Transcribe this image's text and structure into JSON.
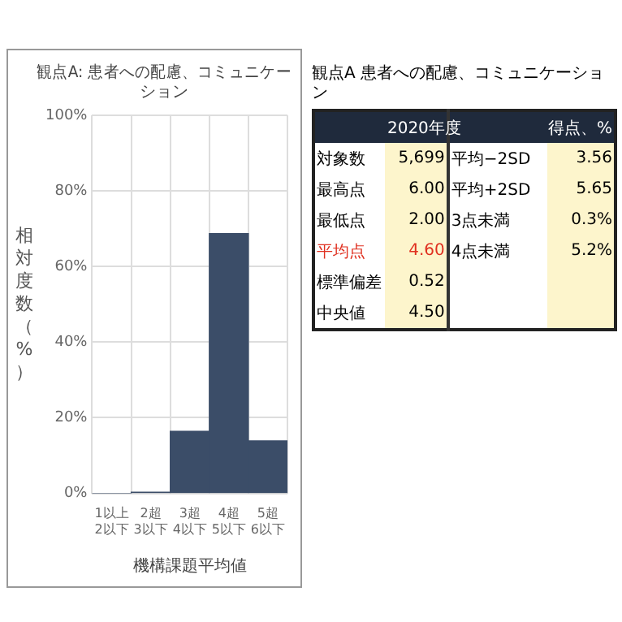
{
  "chart_data": [
    {
      "type": "bar",
      "title": "観点A: 患者への配慮、コミュニケーション",
      "xlabel": "機構課題平均値",
      "ylabel": "相対度数（%）",
      "categories": [
        "1以上\n2以下",
        "2超\n3以下",
        "3超\n4以下",
        "4超\n5以下",
        "5超\n6以下"
      ],
      "values": [
        0,
        0.3,
        16.4,
        68.7,
        13.9
      ],
      "color": "#3b4d68",
      "ylim": [
        0,
        100
      ],
      "yticks": [
        {
          "value": 0,
          "label": "0%"
        },
        {
          "value": 20,
          "label": "20%"
        },
        {
          "value": 40,
          "label": "40%"
        },
        {
          "value": 60,
          "label": "60%"
        },
        {
          "value": 80,
          "label": "80%"
        },
        {
          "value": 100,
          "label": "100%"
        }
      ],
      "grid": true,
      "legend": false
    },
    {
      "type": "other",
      "title": "観点A  患者への配慮、コミュニケーション",
      "annotations": [
        "2020年度",
        "得点、%",
        "対象数",
        "5,699",
        "最高点",
        "6.00",
        "最低点",
        "2.00",
        "平均点",
        "4.60",
        "標準偏差",
        "0.52",
        "中央値",
        "4.50",
        "平均−2SD",
        "3.56",
        "平均+2SD",
        "5.65",
        "3点未満",
        "0.3%",
        "4点未満",
        "5.2%"
      ]
    }
  ]
}
